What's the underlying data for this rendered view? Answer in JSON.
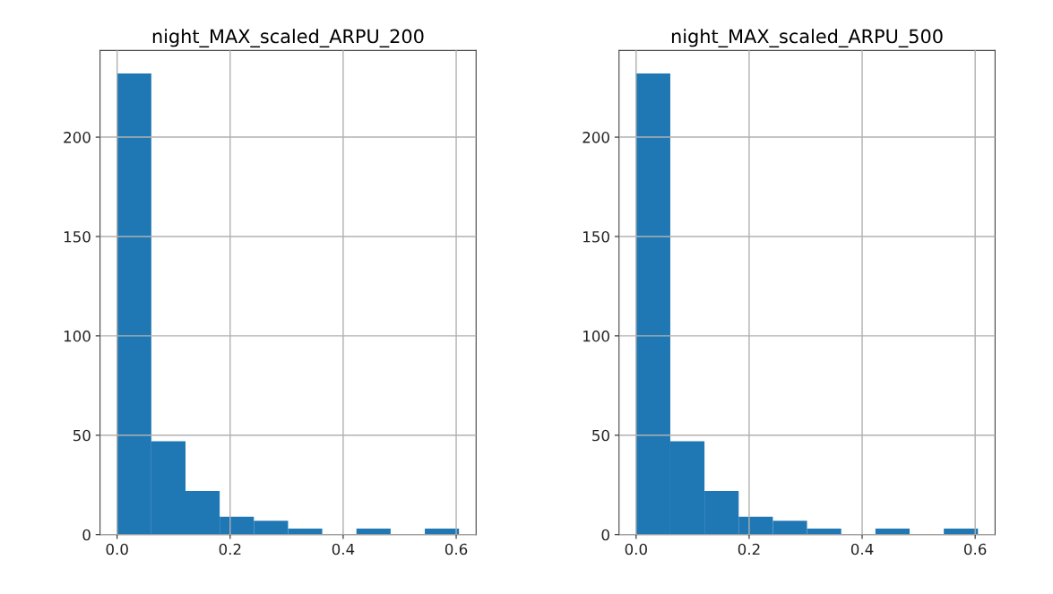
{
  "chart_data": [
    {
      "type": "histogram",
      "title": "night_MAX_scaled_ARPU_200",
      "color": "#1f77b4",
      "grid": true,
      "bins": [
        0,
        0.0605,
        0.121,
        0.1815,
        0.242,
        0.3025,
        0.363,
        0.4235,
        0.484,
        0.5445,
        0.605
      ],
      "values": [
        232,
        47,
        22,
        9,
        7,
        3,
        0,
        3,
        0,
        3
      ],
      "xlim": [
        -0.03025,
        0.63525
      ],
      "xticks": [
        {
          "value": 0,
          "label": "0.0"
        },
        0.2,
        0.4,
        0.6
      ],
      "ylim": [
        0,
        243.6
      ],
      "yticks": [
        0,
        50,
        100,
        150,
        200
      ]
    },
    {
      "type": "histogram",
      "title": "night_MAX_scaled_ARPU_500",
      "color": "#1f77b4",
      "grid": true,
      "bins": [
        0,
        0.0605,
        0.121,
        0.1815,
        0.242,
        0.3025,
        0.363,
        0.4235,
        0.484,
        0.5445,
        0.605
      ],
      "values": [
        232,
        47,
        22,
        9,
        7,
        3,
        0,
        3,
        0,
        3
      ],
      "xlim": [
        -0.03025,
        0.63525
      ],
      "xticks": [
        {
          "value": 0,
          "label": "0.0"
        },
        0.2,
        0.4,
        0.6
      ],
      "ylim": [
        0,
        243.6
      ],
      "yticks": [
        0,
        50,
        100,
        150,
        200
      ]
    }
  ]
}
